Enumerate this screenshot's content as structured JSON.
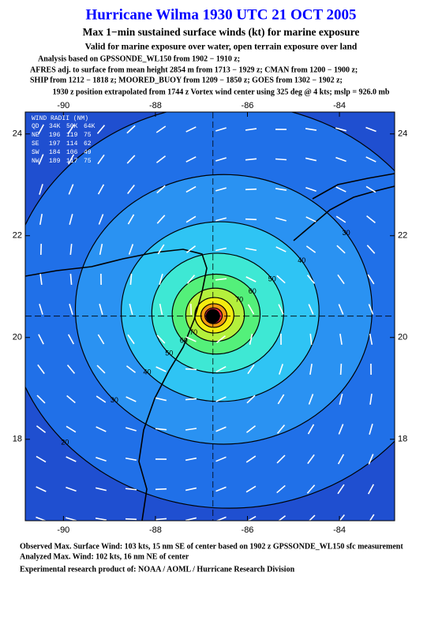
{
  "chart_data": {
    "type": "wind-analysis",
    "title": "Hurricane Wilma 1930 UTC 21 OCT 2005",
    "subtitle": "Max 1−min sustained surface winds (kt) for marine exposure",
    "validity": "Valid for marine exposure over water, open terrain exposure over land",
    "analysis_lines": [
      "Analysis based on  GPSSONDE_WL150 from 1902 − 1910 z;",
      "AFRES adj. to surface from mean height 2854 m from 1713 − 1929 z;  CMAN from 1200 − 1900 z;",
      "SHIP from 1212 − 1818 z;  MOORED_BUOY from 1209 − 1850 z;  GOES from 1302 − 1902 z;",
      "1930 z position extrapolated from 1744 z Vortex wind center using 325 deg @ 4 kts; mslp = 926.0 mb"
    ],
    "xlim": [
      -90.83,
      -82.8
    ],
    "ylim": [
      16.4,
      24.43
    ],
    "xticks": [
      -90,
      -88,
      -86,
      -84
    ],
    "yticks": [
      18,
      20,
      22,
      24
    ],
    "center": {
      "lon": -86.75,
      "lat": 20.42
    },
    "background_color": "#1f4fd0",
    "contours": [
      {
        "level": 20,
        "color": "#2070e8"
      },
      {
        "level": 30,
        "color": "#2a92f2"
      },
      {
        "level": 40,
        "color": "#2fc4f4"
      },
      {
        "level": 50,
        "color": "#3ee8d4"
      },
      {
        "level": 60,
        "color": "#54f07a"
      },
      {
        "level": 70,
        "color": "#b4f03c"
      },
      {
        "level": 80,
        "color": "#f4ec10"
      },
      {
        "level": 90,
        "color": "#f49a10"
      },
      {
        "level": 100,
        "color": "#ec2a40"
      }
    ],
    "wind_radii": {
      "title": "WIND RADII (NM)",
      "header": [
        "QD",
        "34K",
        "50K",
        "64K"
      ],
      "rows": [
        [
          "NE",
          196,
          119,
          75
        ],
        [
          "SE",
          197,
          114,
          62
        ],
        [
          "SW",
          184,
          106,
          49
        ],
        [
          "NW",
          189,
          117,
          75
        ]
      ]
    },
    "footer_lines": [
      "Observed Max. Surface Wind: 103 kts, 15 nm SE of center based on 1902 z GPSSONDE_WL150 sfc measurement",
      "Analyzed Max. Wind: 102 kts, 16 nm NE of center"
    ],
    "credit": "Experimental research product of:  NOAA / AOML / Hurricane Research Division"
  }
}
